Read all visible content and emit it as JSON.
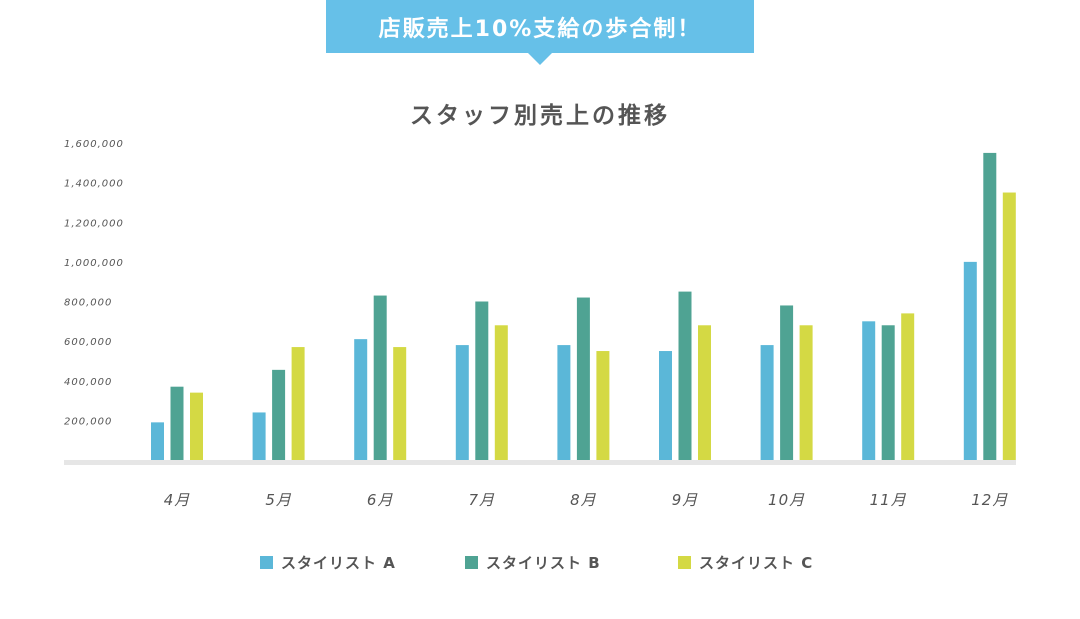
{
  "banner": {
    "text": "店販売上10%支給の歩合制！",
    "color": "#66c0e8"
  },
  "chart_data": {
    "type": "bar",
    "title": "スタッフ別売上の推移",
    "xlabel": "",
    "ylabel": "",
    "ylim": [
      0,
      1600000
    ],
    "y_ticks": [
      200000,
      400000,
      600000,
      800000,
      1000000,
      1200000,
      1400000,
      1600000
    ],
    "y_tick_labels": [
      "200,000",
      "400,000",
      "600,000",
      "800,000",
      "1,000,000",
      "1,200,000",
      "1,400,000",
      "1,600,000"
    ],
    "categories": [
      "4月",
      "5月",
      "6月",
      "7月",
      "8月",
      "9月",
      "10月",
      "11月",
      "12月"
    ],
    "series": [
      {
        "name": "スタイリスト A",
        "color": "#5bb7d8",
        "values": [
          190000,
          240000,
          610000,
          580000,
          580000,
          550000,
          580000,
          700000,
          1000000
        ]
      },
      {
        "name": "スタイリスト B",
        "color": "#4fa393",
        "values": [
          370000,
          455000,
          830000,
          800000,
          820000,
          850000,
          780000,
          680000,
          1550000
        ]
      },
      {
        "name": "スタイリスト C",
        "color": "#d4d944",
        "values": [
          340000,
          570000,
          570000,
          680000,
          550000,
          680000,
          680000,
          740000,
          1350000
        ]
      }
    ],
    "grid": false,
    "legend_position": "bottom-center"
  }
}
